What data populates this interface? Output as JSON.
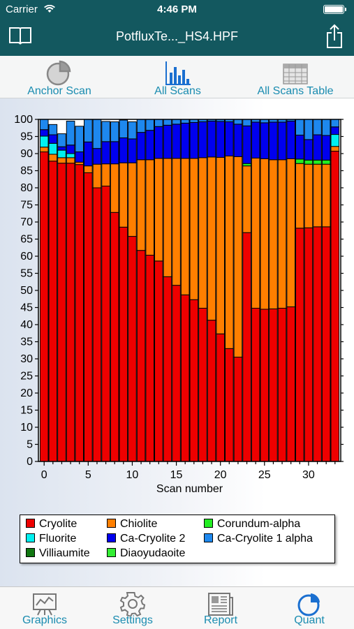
{
  "status_bar": {
    "carrier": "Carrier",
    "time": "4:46 PM"
  },
  "nav": {
    "title": "PotfluxTe..._HS4.HPF",
    "left_icon": "book-icon",
    "right_icon": "share-icon"
  },
  "toolbar": {
    "anchor_scan": "Anchor Scan",
    "all_scans": "All Scans",
    "all_scans_table": "All Scans Table"
  },
  "chart_data": {
    "type": "bar",
    "stacked": true,
    "xlabel": "Scan number",
    "ylabel": "",
    "ylim": [
      0,
      100
    ],
    "yticks": [
      0,
      5,
      10,
      15,
      20,
      25,
      30,
      35,
      40,
      45,
      50,
      55,
      60,
      65,
      70,
      75,
      80,
      85,
      90,
      95,
      100
    ],
    "xticks": [
      0,
      5,
      10,
      15,
      20,
      25,
      30
    ],
    "x": [
      0,
      1,
      2,
      3,
      4,
      5,
      6,
      7,
      8,
      9,
      10,
      11,
      12,
      13,
      14,
      15,
      16,
      17,
      18,
      19,
      20,
      21,
      22,
      23,
      24,
      25,
      26,
      27,
      28,
      29,
      30,
      31,
      32,
      33
    ],
    "legend_position": "bottom",
    "grid": false,
    "series": [
      {
        "name": "Cryolite",
        "color": "#ee0000",
        "values": [
          90.5,
          87.8,
          87.2,
          87.2,
          86.8,
          84.4,
          80.0,
          80.5,
          72.8,
          68.5,
          65.8,
          61.7,
          60.3,
          58.6,
          54.0,
          51.5,
          48.7,
          47.3,
          44.8,
          41.3,
          37.3,
          33.0,
          30.5,
          66.9,
          44.8,
          44.5,
          44.6,
          44.8,
          45.2,
          68.2,
          68.3,
          68.6,
          68.6,
          90.7
        ]
      },
      {
        "name": "Chiolite",
        "color": "#ff7f00",
        "values": [
          1.4,
          2.0,
          1.6,
          1.6,
          0.7,
          2.0,
          6.9,
          6.5,
          14.2,
          18.8,
          21.5,
          26.5,
          27.9,
          30.0,
          34.6,
          37.1,
          39.9,
          41.3,
          44.0,
          47.7,
          51.6,
          56.3,
          58.6,
          19.5,
          43.9,
          44.0,
          43.6,
          43.4,
          43.3,
          18.9,
          18.6,
          18.3,
          18.3,
          1.4
        ]
      },
      {
        "name": "Corundum-alpha",
        "color": "#22ee22",
        "values": [
          0,
          0,
          0,
          0,
          0,
          0,
          0,
          0,
          0,
          0,
          0,
          0,
          0,
          0,
          0,
          0,
          0,
          0,
          0,
          0,
          0,
          0,
          0,
          0.7,
          0,
          0,
          0,
          0,
          0,
          1.3,
          1.2,
          1.2,
          1.2,
          0
        ]
      },
      {
        "name": "Fluorite",
        "color": "#00f0f0",
        "values": [
          3.2,
          3.2,
          2.2,
          1.2,
          0,
          0,
          0,
          0,
          0,
          0,
          0,
          0,
          0,
          0,
          0,
          0,
          0,
          0,
          0,
          0,
          0,
          0,
          0,
          0,
          0,
          0,
          0,
          0,
          0,
          0,
          0,
          0,
          0,
          3.5
        ]
      },
      {
        "name": "Ca-Cryolite 2",
        "color": "#0000ee",
        "values": [
          1.9,
          2.5,
          1.0,
          2.5,
          3.0,
          7.0,
          4.6,
          6.5,
          6.5,
          7.3,
          7.0,
          8.0,
          8.6,
          9.3,
          9.7,
          10.0,
          10.3,
          10.5,
          10.5,
          10.5,
          10.5,
          10.0,
          9.5,
          11.0,
          10.5,
          10.5,
          11.0,
          11.0,
          11.0,
          7.0,
          6.0,
          7.4,
          7.2,
          2.2
        ]
      },
      {
        "name": "Ca-Cryolite 1 alpha",
        "color": "#1e88ee",
        "values": [
          3.0,
          3.0,
          3.8,
          7.0,
          7.5,
          6.6,
          8.5,
          5.9,
          5.8,
          5.2,
          5.0,
          3.8,
          3.2,
          2.1,
          1.7,
          1.4,
          1.1,
          0.9,
          0.7,
          0.5,
          0.6,
          0.7,
          1.4,
          1.9,
          0.8,
          1.0,
          0.8,
          0.8,
          0.5,
          4.6,
          5.9,
          4.5,
          4.7,
          2.2
        ]
      },
      {
        "name": "Villiaumite",
        "color": "#117711",
        "values": [
          0,
          0,
          0,
          0,
          0,
          0,
          0,
          0,
          0,
          0,
          0,
          0,
          0,
          0,
          0,
          0,
          0,
          0,
          0,
          0,
          0,
          0,
          0,
          0,
          0,
          0,
          0,
          0,
          0,
          0,
          0,
          0,
          0,
          0
        ]
      },
      {
        "name": "Diaoyudaoite",
        "color": "#33ee33",
        "values": [
          0,
          0,
          0,
          0,
          0,
          0,
          0,
          0,
          0,
          0,
          0,
          0,
          0,
          0,
          0,
          0,
          0,
          0,
          0,
          0,
          0,
          0,
          0,
          0,
          0,
          0,
          0,
          0,
          0,
          0,
          0,
          0,
          0,
          0
        ]
      }
    ],
    "legend_order": [
      "Cryolite",
      "Chiolite",
      "Corundum-alpha",
      "Fluorite",
      "Ca-Cryolite 2",
      "Ca-Cryolite 1 alpha",
      "Villiaumite",
      "Diaoyudaoite"
    ]
  },
  "tabs": {
    "graphics": "Graphics",
    "settings": "Settings",
    "report": "Report",
    "quant": "Quant",
    "active": "quant"
  }
}
